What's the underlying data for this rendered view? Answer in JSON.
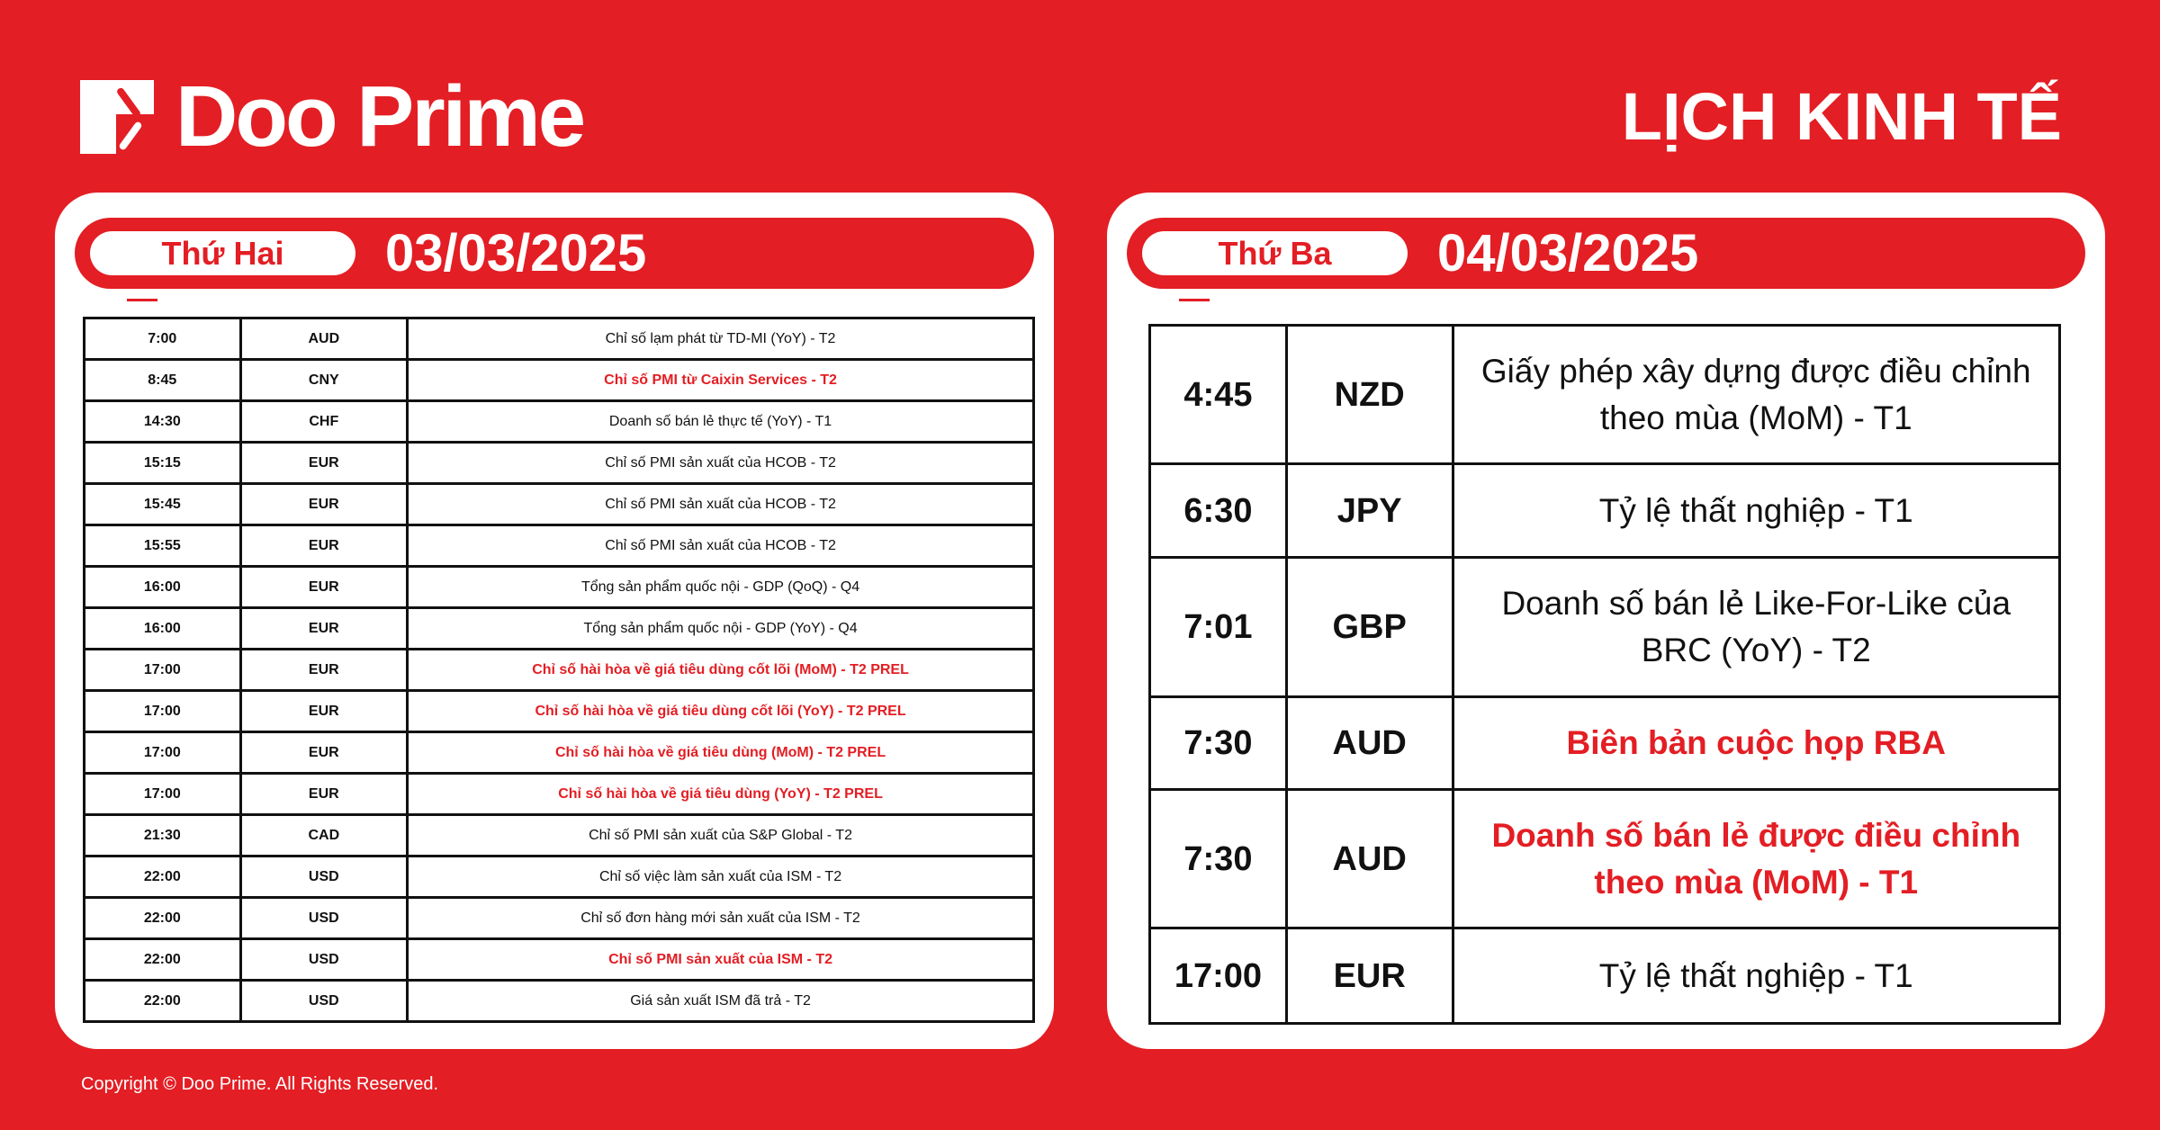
{
  "brand": {
    "name": "Doo Prime",
    "color": "#e31e24"
  },
  "title": "LỊCH KINH TẾ",
  "left": {
    "day": "Thứ Hai",
    "date": "03/03/2025",
    "rows": [
      {
        "time": "7:00",
        "currency": "AUD",
        "event": "Chỉ số lạm phát từ TD-MI (YoY) - T2",
        "highlight": false
      },
      {
        "time": "8:45",
        "currency": "CNY",
        "event": "Chỉ số PMI từ Caixin Services - T2",
        "highlight": true
      },
      {
        "time": "14:30",
        "currency": "CHF",
        "event": "Doanh số bán lẻ thực tế (YoY) - T1",
        "highlight": false
      },
      {
        "time": "15:15",
        "currency": "EUR",
        "event": "Chỉ số PMI sản xuất của HCOB - T2",
        "highlight": false
      },
      {
        "time": "15:45",
        "currency": "EUR",
        "event": "Chỉ số PMI sản xuất của HCOB - T2",
        "highlight": false
      },
      {
        "time": "15:55",
        "currency": "EUR",
        "event": "Chỉ số PMI sản xuất của HCOB - T2",
        "highlight": false
      },
      {
        "time": "16:00",
        "currency": "EUR",
        "event": "Tổng sản phẩm quốc nội - GDP (QoQ) - Q4",
        "highlight": false
      },
      {
        "time": "16:00",
        "currency": "EUR",
        "event": "Tổng sản phẩm quốc nội - GDP (YoY) - Q4",
        "highlight": false
      },
      {
        "time": "17:00",
        "currency": "EUR",
        "event": "Chỉ số hài hòa về giá tiêu dùng cốt lõi (MoM) - T2 PREL",
        "highlight": true
      },
      {
        "time": "17:00",
        "currency": "EUR",
        "event": "Chỉ số hài hòa về giá tiêu dùng cốt lõi (YoY) - T2 PREL",
        "highlight": true
      },
      {
        "time": "17:00",
        "currency": "EUR",
        "event": "Chỉ số hài hòa về giá tiêu dùng (MoM) - T2 PREL",
        "highlight": true
      },
      {
        "time": "17:00",
        "currency": "EUR",
        "event": "Chỉ số hài hòa về giá tiêu dùng (YoY) - T2 PREL",
        "highlight": true
      },
      {
        "time": "21:30",
        "currency": "CAD",
        "event": "Chỉ số PMI sản xuất của S&P Global - T2",
        "highlight": false
      },
      {
        "time": "22:00",
        "currency": "USD",
        "event": "Chỉ số việc làm sản xuất của ISM - T2",
        "highlight": false
      },
      {
        "time": "22:00",
        "currency": "USD",
        "event": "Chỉ số đơn hàng mới sản xuất của ISM - T2",
        "highlight": false
      },
      {
        "time": "22:00",
        "currency": "USD",
        "event": "Chỉ số PMI sản xuất của ISM - T2",
        "highlight": true
      },
      {
        "time": "22:00",
        "currency": "USD",
        "event": "Giá sản xuất ISM đã trả - T2",
        "highlight": false
      }
    ]
  },
  "right": {
    "day": "Thứ Ba",
    "date": "04/03/2025",
    "rows": [
      {
        "time": "4:45",
        "currency": "NZD",
        "event": "Giấy phép xây dựng được điều chỉnh theo mùa (MoM) - T1",
        "highlight": false
      },
      {
        "time": "6:30",
        "currency": "JPY",
        "event": "Tỷ lệ thất nghiệp - T1",
        "highlight": false
      },
      {
        "time": "7:01",
        "currency": "GBP",
        "event": "Doanh số bán lẻ Like-For-Like của BRC (YoY) - T2",
        "highlight": false
      },
      {
        "time": "7:30",
        "currency": "AUD",
        "event": "Biên bản cuộc họp RBA",
        "highlight": true
      },
      {
        "time": "7:30",
        "currency": "AUD",
        "event": "Doanh số bán lẻ được điều chỉnh theo mùa (MoM) - T1",
        "highlight": true
      },
      {
        "time": "17:00",
        "currency": "EUR",
        "event": "Tỷ lệ thất nghiệp - T1",
        "highlight": false
      }
    ]
  },
  "footer": {
    "copyright": "Copyright © Doo Prime. All Rights Reserved."
  }
}
